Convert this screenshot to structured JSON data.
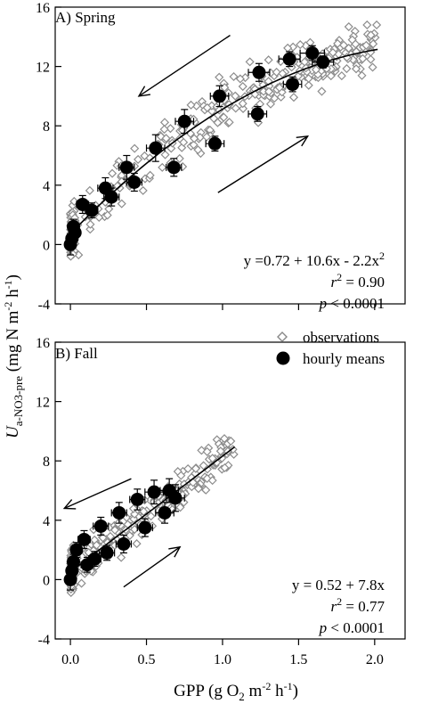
{
  "chart_data": [
    {
      "type": "scatter",
      "panel_label": "A) Spring",
      "xlim": [
        -0.1,
        2.2
      ],
      "ylim": [
        -4,
        16
      ],
      "xticks": [
        "0.0",
        "0.5",
        "1.0",
        "1.5",
        "2.0"
      ],
      "yticks": [
        "-4",
        "0",
        "4",
        "8",
        "12",
        "16"
      ],
      "hourly_means": [
        {
          "x": 0.0,
          "y": 0.0,
          "xerr": 0.02,
          "yerr": 0.7
        },
        {
          "x": 0.01,
          "y": 0.4,
          "xerr": 0.02,
          "yerr": 0.5
        },
        {
          "x": 0.02,
          "y": 1.2,
          "xerr": 0.02,
          "yerr": 0.5
        },
        {
          "x": 0.03,
          "y": 0.8,
          "xerr": 0.02,
          "yerr": 0.5
        },
        {
          "x": 0.08,
          "y": 2.7,
          "xerr": 0.04,
          "yerr": 0.6
        },
        {
          "x": 0.14,
          "y": 2.3,
          "xerr": 0.04,
          "yerr": 0.5
        },
        {
          "x": 0.23,
          "y": 3.8,
          "xerr": 0.05,
          "yerr": 0.7
        },
        {
          "x": 0.27,
          "y": 3.2,
          "xerr": 0.05,
          "yerr": 0.6
        },
        {
          "x": 0.37,
          "y": 5.2,
          "xerr": 0.05,
          "yerr": 0.8
        },
        {
          "x": 0.42,
          "y": 4.2,
          "xerr": 0.05,
          "yerr": 0.6
        },
        {
          "x": 0.56,
          "y": 6.5,
          "xerr": 0.06,
          "yerr": 0.9
        },
        {
          "x": 0.68,
          "y": 5.2,
          "xerr": 0.05,
          "yerr": 0.6
        },
        {
          "x": 0.75,
          "y": 8.3,
          "xerr": 0.06,
          "yerr": 0.8
        },
        {
          "x": 0.95,
          "y": 6.8,
          "xerr": 0.06,
          "yerr": 0.5
        },
        {
          "x": 0.98,
          "y": 10.0,
          "xerr": 0.06,
          "yerr": 0.7
        },
        {
          "x": 1.23,
          "y": 8.8,
          "xerr": 0.06,
          "yerr": 0.5
        },
        {
          "x": 1.24,
          "y": 11.6,
          "xerr": 0.07,
          "yerr": 0.6
        },
        {
          "x": 1.44,
          "y": 12.5,
          "xerr": 0.07,
          "yerr": 0.5
        },
        {
          "x": 1.46,
          "y": 10.8,
          "xerr": 0.06,
          "yerr": 0.5
        },
        {
          "x": 1.59,
          "y": 12.9,
          "xerr": 0.08,
          "yerr": 0.5
        },
        {
          "x": 1.66,
          "y": 12.3,
          "xerr": 0.07,
          "yerr": 0.4
        }
      ],
      "fit": {
        "intercept": 0.72,
        "b1": 10.6,
        "b2": -2.2,
        "x_range": [
          0.0,
          2.02
        ]
      },
      "equation": {
        "line1": "y =0.72 + 10.6x - 2.2x",
        "line1_sup": "2",
        "r2_label": "r",
        "r2_value": " = 0.90",
        "p_label": "p",
        "p_value": " < 0.0001"
      },
      "arrows": [
        {
          "direction": "upper-left",
          "from": [
            1.05,
            14.1
          ],
          "to": [
            0.45,
            10.0
          ]
        },
        {
          "direction": "lower-right",
          "from": [
            0.97,
            3.5
          ],
          "to": [
            1.56,
            7.3
          ]
        }
      ]
    },
    {
      "type": "scatter",
      "panel_label": "B) Fall",
      "xlim": [
        -0.1,
        2.2
      ],
      "ylim": [
        -4,
        16
      ],
      "xticks": [
        "0.0",
        "0.5",
        "1.0",
        "1.5",
        "2.0"
      ],
      "yticks": [
        "-4",
        "0",
        "4",
        "8",
        "12",
        "16"
      ],
      "hourly_means": [
        {
          "x": 0.0,
          "y": 0.0,
          "xerr": 0.02,
          "yerr": 0.7
        },
        {
          "x": 0.01,
          "y": 0.6,
          "xerr": 0.02,
          "yerr": 0.5
        },
        {
          "x": 0.02,
          "y": 1.2,
          "xerr": 0.02,
          "yerr": 0.5
        },
        {
          "x": 0.04,
          "y": 2.0,
          "xerr": 0.03,
          "yerr": 0.5
        },
        {
          "x": 0.09,
          "y": 2.7,
          "xerr": 0.04,
          "yerr": 0.6
        },
        {
          "x": 0.11,
          "y": 1.0,
          "xerr": 0.04,
          "yerr": 0.5
        },
        {
          "x": 0.16,
          "y": 1.4,
          "xerr": 0.04,
          "yerr": 0.5
        },
        {
          "x": 0.2,
          "y": 3.6,
          "xerr": 0.05,
          "yerr": 0.6
        },
        {
          "x": 0.24,
          "y": 1.8,
          "xerr": 0.05,
          "yerr": 0.5
        },
        {
          "x": 0.32,
          "y": 4.5,
          "xerr": 0.05,
          "yerr": 0.7
        },
        {
          "x": 0.35,
          "y": 2.4,
          "xerr": 0.05,
          "yerr": 0.6
        },
        {
          "x": 0.44,
          "y": 5.4,
          "xerr": 0.05,
          "yerr": 0.7
        },
        {
          "x": 0.49,
          "y": 3.5,
          "xerr": 0.05,
          "yerr": 0.6
        },
        {
          "x": 0.55,
          "y": 5.9,
          "xerr": 0.06,
          "yerr": 0.8
        },
        {
          "x": 0.62,
          "y": 4.5,
          "xerr": 0.06,
          "yerr": 0.7
        },
        {
          "x": 0.65,
          "y": 6.0,
          "xerr": 0.06,
          "yerr": 0.8
        },
        {
          "x": 0.69,
          "y": 5.5,
          "xerr": 0.06,
          "yerr": 0.9
        }
      ],
      "fit": {
        "intercept": 0.52,
        "b1": 7.8,
        "b2": 0,
        "x_range": [
          0.0,
          1.08
        ]
      },
      "equation": {
        "line1": "y = 0.52 + 7.8x",
        "line1_sup": "",
        "r2_label": "r",
        "r2_value": " = 0.77",
        "p_label": "p",
        "p_value": " < 0.0001"
      },
      "arrows": [
        {
          "direction": "upper-left",
          "from": [
            0.4,
            6.8
          ],
          "to": [
            -0.04,
            4.8
          ]
        },
        {
          "direction": "lower-right",
          "from": [
            0.35,
            -0.5
          ],
          "to": [
            0.72,
            2.2
          ]
        }
      ],
      "legend": {
        "observations": "observations",
        "hourly_means": "hourly means",
        "placement": "top-right"
      }
    }
  ],
  "y_axis_title": {
    "italic_U": "U",
    "subscript": "a-NO3-pre",
    "units_open": " (mg N m",
    "units_sup1": "-2",
    "units_mid": " h",
    "units_sup2": "-1",
    "units_close": ")"
  },
  "x_axis_title": {
    "text": "GPP (g O",
    "sub": "2",
    "mid": " m",
    "sup1": "-2",
    "mid2": " h",
    "sup2": "-1",
    "close": ")"
  }
}
